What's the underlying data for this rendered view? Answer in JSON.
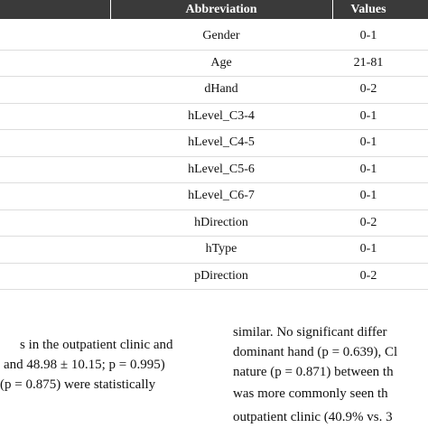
{
  "table": {
    "header": [
      "Abbreviation",
      "Values"
    ],
    "rows": [
      [
        "Gender",
        "0-1"
      ],
      [
        "Age",
        "21-81"
      ],
      [
        "dHand",
        "0-2"
      ],
      [
        "hLevel_C3-4",
        "0-1"
      ],
      [
        "hLevel_C4-5",
        "0-1"
      ],
      [
        "hLevel_C5-6",
        "0-1"
      ],
      [
        "hLevel_C6-7",
        "0-1"
      ],
      [
        "hDirection",
        "0-2"
      ],
      [
        "hType",
        "0-1"
      ],
      [
        "pDirection",
        "0-2"
      ]
    ]
  },
  "text": {
    "left": [
      "s in the outpatient clinic and",
      "and 48.98 ± 10.15; p = 0.995)",
      "(p = 0.875) were statistically"
    ],
    "right": [
      "similar. No significant differ",
      "dominant hand (p = 0.639), Cl",
      "nature (p = 0.871) between th",
      "was more commonly seen th",
      "outpatient clinic (40.9% vs. 3"
    ]
  }
}
